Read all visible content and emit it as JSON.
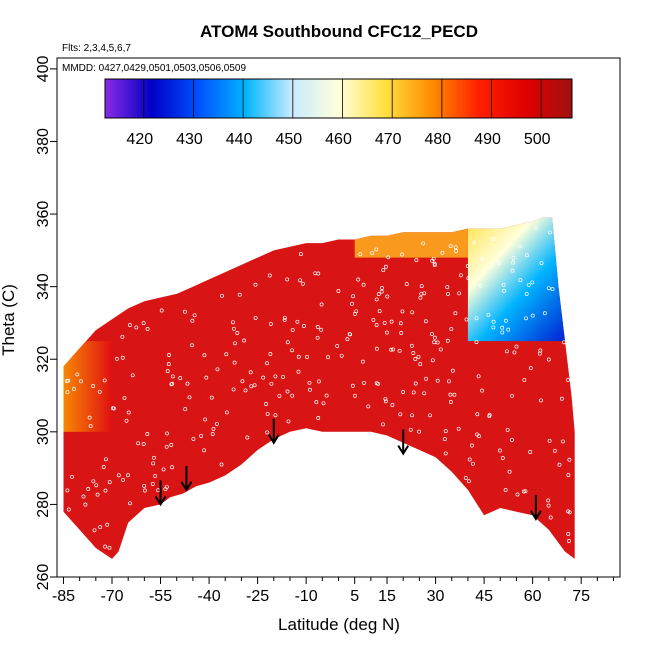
{
  "chart_data": {
    "type": "heatmap",
    "title": "ATOM4 Southbound CFC12_PECD",
    "subtitle_flights": "Flts: 2,3,4,5,6,7",
    "subtitle_dates": "MMDD: 0427,0429,0501,0503,0506,0509",
    "xlabel": "Latitude (deg N)",
    "ylabel": "Theta (C)",
    "xlim": [
      -87,
      87
    ],
    "ylim": [
      260,
      403
    ],
    "x_ticks": [
      -85,
      -70,
      -55,
      -40,
      -25,
      -10,
      5,
      15,
      30,
      45,
      60,
      75
    ],
    "x_minor_ticks": [
      -80,
      -75,
      -65,
      -60,
      -50,
      -45,
      -35,
      -30,
      -20,
      -15,
      -5,
      0,
      10,
      20,
      25,
      35,
      40,
      50,
      55,
      65,
      70,
      80,
      85
    ],
    "y_ticks": [
      260,
      280,
      300,
      320,
      340,
      360,
      380,
      400
    ],
    "colorbar": {
      "range": [
        413,
        507
      ],
      "ticks": [
        420,
        430,
        440,
        450,
        460,
        470,
        480,
        490,
        500
      ],
      "colors": [
        "#8a2be2",
        "#0000c8",
        "#0050ff",
        "#00b4ff",
        "#c8ebff",
        "#ffffdc",
        "#ffe040",
        "#ff8c00",
        "#ff2000",
        "#e00000",
        "#a01010"
      ]
    },
    "upper_boundary": [
      [
        -85,
        318
      ],
      [
        -80,
        323
      ],
      [
        -75,
        328
      ],
      [
        -70,
        331
      ],
      [
        -65,
        334
      ],
      [
        -60,
        336
      ],
      [
        -55,
        337
      ],
      [
        -50,
        338
      ],
      [
        -45,
        340
      ],
      [
        -40,
        342
      ],
      [
        -35,
        344
      ],
      [
        -30,
        346
      ],
      [
        -25,
        348
      ],
      [
        -20,
        350
      ],
      [
        -15,
        351
      ],
      [
        -10,
        352
      ],
      [
        -5,
        352
      ],
      [
        0,
        353
      ],
      [
        5,
        353
      ],
      [
        10,
        354
      ],
      [
        15,
        354
      ],
      [
        20,
        355
      ],
      [
        25,
        355
      ],
      [
        30,
        355
      ],
      [
        35,
        355
      ],
      [
        40,
        356
      ],
      [
        45,
        356
      ],
      [
        50,
        356
      ],
      [
        55,
        357
      ],
      [
        60,
        358
      ],
      [
        63,
        359
      ],
      [
        66,
        359
      ],
      [
        68,
        340
      ],
      [
        70,
        325
      ],
      [
        72,
        310
      ],
      [
        73,
        300
      ],
      [
        73,
        290
      ]
    ],
    "lower_boundary": [
      [
        -85,
        278
      ],
      [
        -80,
        273
      ],
      [
        -75,
        268
      ],
      [
        -70,
        265
      ],
      [
        -68,
        267
      ],
      [
        -65,
        275
      ],
      [
        -60,
        279
      ],
      [
        -55,
        280
      ],
      [
        -52,
        282
      ],
      [
        -48,
        283
      ],
      [
        -44,
        285
      ],
      [
        -40,
        286
      ],
      [
        -35,
        288
      ],
      [
        -30,
        291
      ],
      [
        -25,
        295
      ],
      [
        -20,
        298
      ],
      [
        -15,
        300
      ],
      [
        -10,
        301
      ],
      [
        -5,
        300
      ],
      [
        0,
        300
      ],
      [
        5,
        300
      ],
      [
        10,
        300
      ],
      [
        15,
        299
      ],
      [
        20,
        297
      ],
      [
        25,
        295
      ],
      [
        30,
        293
      ],
      [
        35,
        289
      ],
      [
        40,
        284
      ],
      [
        45,
        277
      ],
      [
        50,
        279
      ],
      [
        55,
        278
      ],
      [
        60,
        277
      ],
      [
        65,
        273
      ],
      [
        70,
        267
      ],
      [
        73,
        265
      ]
    ],
    "arrows_latitude": [
      -55,
      -47,
      -20,
      20,
      61
    ],
    "arrows_theta_tip": [
      280,
      284,
      297,
      294,
      276
    ],
    "regions": [
      {
        "name": "upper-north-low-values",
        "lat_range": [
          40,
          72
        ],
        "theta_range": [
          325,
          360
        ],
        "value_range": [
          420,
          470
        ]
      },
      {
        "name": "south-edge-orange",
        "lat_range": [
          -86,
          -70
        ],
        "theta_range": [
          300,
          325
        ],
        "value_range": [
          480,
          490
        ]
      },
      {
        "name": "bulk",
        "lat_range": [
          -85,
          73
        ],
        "theta_range": [
          265,
          350
        ],
        "value_range": [
          490,
          505
        ]
      }
    ]
  }
}
